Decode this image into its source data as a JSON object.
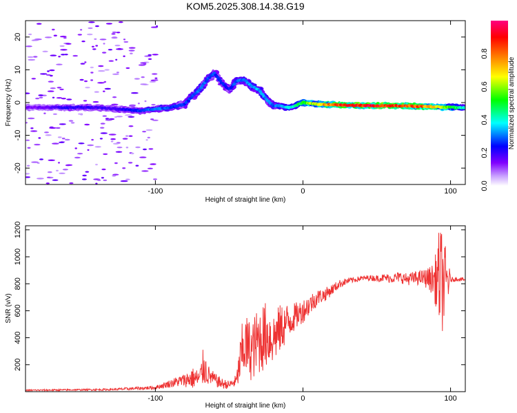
{
  "chart_data": [
    {
      "type": "heatmap",
      "title": "KOM5.2025.308.14.38.G19",
      "xlabel": "Height of straight line (km)",
      "ylabel": "Frequency (Hz)",
      "xlim": [
        -188,
        110
      ],
      "ylim": [
        -25,
        25
      ],
      "x_ticks": [
        -100,
        0,
        100
      ],
      "x_tick_labels": [
        "-100",
        "0",
        "100"
      ],
      "y_ticks": [
        -20,
        -10,
        0,
        10,
        20
      ],
      "y_tick_labels": [
        "-20",
        "-10",
        "0",
        "10",
        "20"
      ],
      "colorbar": {
        "label": "Normalized spectral amplitude",
        "range": [
          0.0,
          1.0
        ],
        "ticks": [
          0.0,
          0.2,
          0.4,
          0.6,
          0.8
        ],
        "tick_labels": [
          "0.0",
          "0.2",
          "0.4",
          "0.6",
          "0.8"
        ],
        "colormap": [
          "#ffffff",
          "#c8a0ff",
          "#8000ff",
          "#0000ff",
          "#00ffff",
          "#00ff00",
          "#ffff00",
          "#ff8000",
          "#ff0000",
          "#ff0080"
        ]
      },
      "ridge": {
        "x": [
          -180,
          -160,
          -140,
          -125,
          -110,
          -100,
          -90,
          -80,
          -75,
          -70,
          -65,
          -60,
          -55,
          -50,
          -45,
          -40,
          -35,
          -30,
          -25,
          -20,
          -15,
          -10,
          -5,
          0,
          10,
          20,
          30,
          40,
          50,
          60,
          70,
          80,
          90,
          100,
          110
        ],
        "freq": [
          -1.5,
          -1.5,
          -1.5,
          -2,
          -2.5,
          -2,
          -1.5,
          -0.5,
          2,
          4,
          7,
          9,
          6,
          4,
          6.5,
          7,
          5,
          4,
          1,
          -1,
          -1,
          -1.5,
          -1,
          0,
          -0.5,
          -0.7,
          -0.8,
          -0.9,
          -1,
          -1,
          -1,
          -1.2,
          -1.3,
          -1.5,
          -1.5
        ],
        "amplitude": [
          0.15,
          0.22,
          0.2,
          0.2,
          0.28,
          0.32,
          0.3,
          0.26,
          0.3,
          0.33,
          0.3,
          0.28,
          0.27,
          0.25,
          0.3,
          0.33,
          0.35,
          0.35,
          0.33,
          0.3,
          0.34,
          0.4,
          0.45,
          0.55,
          0.7,
          0.85,
          0.92,
          0.93,
          0.95,
          0.92,
          0.88,
          0.85,
          0.75,
          0.55,
          0.4
        ]
      }
    },
    {
      "type": "line",
      "title": "",
      "xlabel": "Height of straight line (km)",
      "ylabel": "SNR (v/v)",
      "xlim": [
        -188,
        110
      ],
      "ylim": [
        0,
        1230
      ],
      "x_ticks": [
        -100,
        0,
        100
      ],
      "x_tick_labels": [
        "-100",
        "0",
        "100"
      ],
      "y_ticks": [
        200,
        400,
        600,
        800,
        1000,
        1200
      ],
      "y_tick_labels": [
        "200",
        "400",
        "600",
        "800",
        "1000",
        "1200"
      ],
      "color": "#ee3333",
      "series": [
        {
          "name": "SNR",
          "x": [
            -188,
            -170,
            -150,
            -130,
            -110,
            -100,
            -95,
            -90,
            -85,
            -80,
            -75,
            -70,
            -67,
            -65,
            -60,
            -55,
            -50,
            -45,
            -42,
            -40,
            -35,
            -30,
            -25,
            -20,
            -15,
            -10,
            -5,
            0,
            5,
            10,
            15,
            20,
            25,
            30,
            35,
            40,
            45,
            50,
            55,
            60,
            65,
            70,
            75,
            80,
            85,
            88,
            90,
            92,
            94,
            96,
            98,
            100,
            105,
            110
          ],
          "mean": [
            10,
            12,
            14,
            16,
            25,
            30,
            45,
            60,
            75,
            85,
            100,
            95,
            200,
            130,
            90,
            60,
            50,
            80,
            250,
            350,
            300,
            380,
            420,
            400,
            470,
            520,
            560,
            600,
            650,
            700,
            720,
            760,
            800,
            820,
            830,
            840,
            845,
            840,
            845,
            840,
            850,
            835,
            840,
            845,
            840,
            830,
            830,
            840,
            820,
            800,
            830,
            830,
            835,
            830
          ],
          "spread": [
            6,
            6,
            6,
            8,
            12,
            15,
            20,
            30,
            40,
            50,
            80,
            70,
            160,
            80,
            50,
            40,
            30,
            50,
            200,
            250,
            220,
            260,
            250,
            200,
            180,
            140,
            100,
            90,
            80,
            60,
            50,
            40,
            30,
            25,
            20,
            20,
            20,
            25,
            30,
            35,
            40,
            45,
            50,
            55,
            80,
            120,
            200,
            350,
            400,
            300,
            200,
            20,
            15,
            15
          ]
        }
      ]
    }
  ]
}
